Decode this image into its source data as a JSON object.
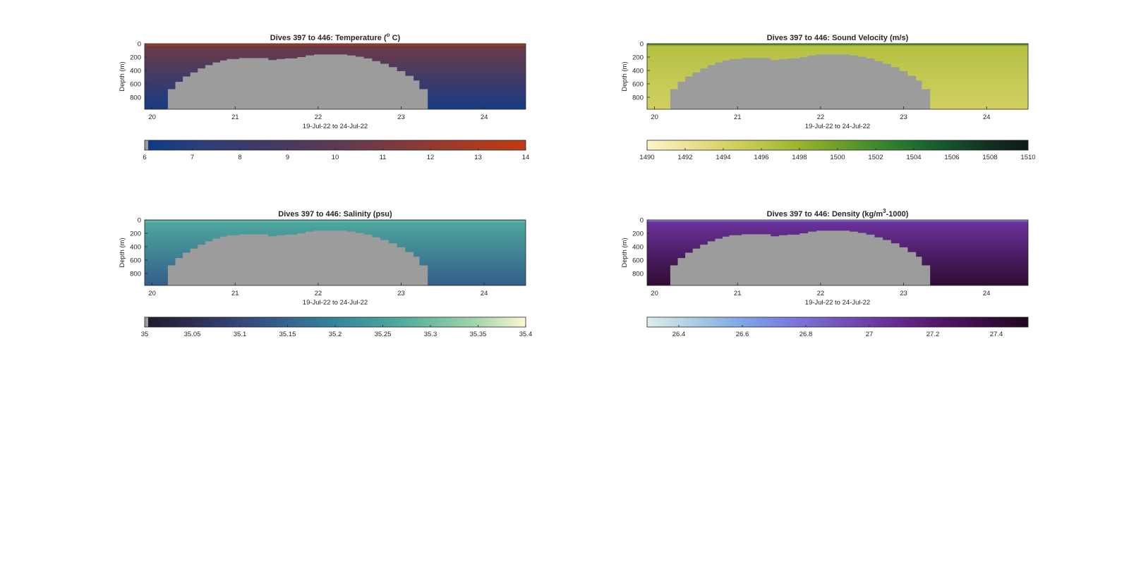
{
  "figure": {
    "background": "#ffffff",
    "seafloor_color": "#9c9c9c"
  },
  "chart_data": [
    {
      "type": "heatmap",
      "title_main": "Dives 397 to 446: Temperature (",
      "title_sup": "o",
      "title_tail": " C)",
      "xlabel": "19-Jul-22 to 24-Jul-22",
      "ylabel": "Depth (m)",
      "xlim": [
        19.91,
        24.5
      ],
      "ylim": [
        0,
        980
      ],
      "x_ticks": [
        20,
        21,
        22,
        23,
        24
      ],
      "y_ticks": [
        0,
        200,
        400,
        600,
        800
      ],
      "bathymetry_depth_m": [
        [
          19.91,
          980
        ],
        [
          20.19,
          980
        ],
        [
          20.19,
          680
        ],
        [
          20.28,
          680
        ],
        [
          20.28,
          570
        ],
        [
          20.37,
          570
        ],
        [
          20.37,
          490
        ],
        [
          20.46,
          490
        ],
        [
          20.46,
          430
        ],
        [
          20.55,
          430
        ],
        [
          20.55,
          370
        ],
        [
          20.64,
          370
        ],
        [
          20.64,
          320
        ],
        [
          20.73,
          320
        ],
        [
          20.73,
          280
        ],
        [
          20.82,
          280
        ],
        [
          20.82,
          250
        ],
        [
          20.9,
          250
        ],
        [
          20.9,
          230
        ],
        [
          21.05,
          230
        ],
        [
          21.05,
          215
        ],
        [
          21.4,
          215
        ],
        [
          21.4,
          245
        ],
        [
          21.5,
          245
        ],
        [
          21.5,
          230
        ],
        [
          21.6,
          230
        ],
        [
          21.6,
          220
        ],
        [
          21.75,
          220
        ],
        [
          21.75,
          200
        ],
        [
          21.85,
          200
        ],
        [
          21.85,
          175
        ],
        [
          21.95,
          175
        ],
        [
          21.95,
          160
        ],
        [
          22.35,
          160
        ],
        [
          22.35,
          175
        ],
        [
          22.45,
          175
        ],
        [
          22.45,
          195
        ],
        [
          22.55,
          195
        ],
        [
          22.55,
          220
        ],
        [
          22.65,
          220
        ],
        [
          22.65,
          260
        ],
        [
          22.75,
          260
        ],
        [
          22.75,
          300
        ],
        [
          22.85,
          300
        ],
        [
          22.85,
          350
        ],
        [
          22.95,
          350
        ],
        [
          22.95,
          410
        ],
        [
          23.05,
          410
        ],
        [
          23.05,
          480
        ],
        [
          23.15,
          480
        ],
        [
          23.15,
          550
        ],
        [
          23.22,
          550
        ],
        [
          23.22,
          680
        ],
        [
          23.32,
          680
        ],
        [
          23.32,
          980
        ]
      ],
      "profile": {
        "surface_value": 13.8,
        "near_surface_value": 12.2,
        "gradient_top_value": 10.6,
        "bottom_value": 6.4,
        "mixed_layer_depth_m": 45
      },
      "colorbar": {
        "range": [
          6,
          14
        ],
        "ticks": [
          "6",
          "7",
          "8",
          "9",
          "10",
          "11",
          "12",
          "13",
          "14"
        ],
        "colors": [
          "#0d3a8a",
          "#2a3f7a",
          "#3e3a68",
          "#503a5a",
          "#6a3a4a",
          "#8a3a35",
          "#a83a22",
          "#c03a10"
        ],
        "low_end_gray": true
      }
    },
    {
      "type": "heatmap",
      "title_main": "Dives 397 to 446: Sound Velocity (m/s)",
      "title_sup": "",
      "title_tail": "",
      "xlabel": "19-Jul-22 to 24-Jul-22",
      "ylabel": "Depth (m)",
      "xlim": [
        19.91,
        24.5
      ],
      "ylim": [
        0,
        980
      ],
      "x_ticks": [
        20,
        21,
        22,
        23,
        24
      ],
      "y_ticks": [
        0,
        200,
        400,
        600,
        800
      ],
      "bathymetry_depth_m": [
        [
          19.91,
          980
        ],
        [
          20.19,
          980
        ],
        [
          20.19,
          680
        ],
        [
          20.28,
          680
        ],
        [
          20.28,
          570
        ],
        [
          20.37,
          570
        ],
        [
          20.37,
          490
        ],
        [
          20.46,
          490
        ],
        [
          20.46,
          430
        ],
        [
          20.55,
          430
        ],
        [
          20.55,
          370
        ],
        [
          20.64,
          370
        ],
        [
          20.64,
          320
        ],
        [
          20.73,
          320
        ],
        [
          20.73,
          280
        ],
        [
          20.82,
          280
        ],
        [
          20.82,
          250
        ],
        [
          20.9,
          250
        ],
        [
          20.9,
          230
        ],
        [
          21.05,
          230
        ],
        [
          21.05,
          215
        ],
        [
          21.4,
          215
        ],
        [
          21.4,
          245
        ],
        [
          21.5,
          245
        ],
        [
          21.5,
          230
        ],
        [
          21.6,
          230
        ],
        [
          21.6,
          220
        ],
        [
          21.75,
          220
        ],
        [
          21.75,
          200
        ],
        [
          21.85,
          200
        ],
        [
          21.85,
          175
        ],
        [
          21.95,
          175
        ],
        [
          21.95,
          160
        ],
        [
          22.35,
          160
        ],
        [
          22.35,
          175
        ],
        [
          22.45,
          175
        ],
        [
          22.45,
          195
        ],
        [
          22.55,
          195
        ],
        [
          22.55,
          220
        ],
        [
          22.65,
          220
        ],
        [
          22.65,
          260
        ],
        [
          22.75,
          260
        ],
        [
          22.75,
          300
        ],
        [
          22.85,
          300
        ],
        [
          22.85,
          350
        ],
        [
          22.95,
          350
        ],
        [
          22.95,
          410
        ],
        [
          23.05,
          410
        ],
        [
          23.05,
          480
        ],
        [
          23.15,
          480
        ],
        [
          23.15,
          550
        ],
        [
          23.22,
          550
        ],
        [
          23.22,
          680
        ],
        [
          23.32,
          680
        ],
        [
          23.32,
          980
        ]
      ],
      "profile": {
        "surface_value": 1504.5,
        "near_surface_value": 1499.0,
        "gradient_top_value": 1496.5,
        "bottom_value": 1494.5,
        "mixed_layer_depth_m": 45
      },
      "colorbar": {
        "range": [
          1490,
          1510
        ],
        "ticks": [
          "1490",
          "1492",
          "1494",
          "1496",
          "1498",
          "1500",
          "1502",
          "1504",
          "1506",
          "1508",
          "1510"
        ],
        "colors": [
          "#fbf6c8",
          "#eee29a",
          "#d8d46a",
          "#bdc54a",
          "#99b42e",
          "#6ea02a",
          "#3f8a2e",
          "#1f6f30",
          "#164f2c",
          "#112f20",
          "#0f1a14"
        ],
        "low_end_gray": false
      }
    },
    {
      "type": "heatmap",
      "title_main": "Dives 397 to 446: Salinity (psu)",
      "title_sup": "",
      "title_tail": "",
      "xlabel": "19-Jul-22 to 24-Jul-22",
      "ylabel": "Depth (m)",
      "xlim": [
        19.91,
        24.5
      ],
      "ylim": [
        0,
        980
      ],
      "x_ticks": [
        20,
        21,
        22,
        23,
        24
      ],
      "y_ticks": [
        0,
        200,
        400,
        600,
        800
      ],
      "bathymetry_depth_m": [
        [
          19.91,
          980
        ],
        [
          20.19,
          980
        ],
        [
          20.19,
          680
        ],
        [
          20.28,
          680
        ],
        [
          20.28,
          570
        ],
        [
          20.37,
          570
        ],
        [
          20.37,
          490
        ],
        [
          20.46,
          490
        ],
        [
          20.46,
          430
        ],
        [
          20.55,
          430
        ],
        [
          20.55,
          370
        ],
        [
          20.64,
          370
        ],
        [
          20.64,
          320
        ],
        [
          20.73,
          320
        ],
        [
          20.73,
          280
        ],
        [
          20.82,
          280
        ],
        [
          20.82,
          250
        ],
        [
          20.9,
          250
        ],
        [
          20.9,
          230
        ],
        [
          21.05,
          230
        ],
        [
          21.05,
          215
        ],
        [
          21.4,
          215
        ],
        [
          21.4,
          245
        ],
        [
          21.5,
          245
        ],
        [
          21.5,
          230
        ],
        [
          21.6,
          230
        ],
        [
          21.6,
          220
        ],
        [
          21.75,
          220
        ],
        [
          21.75,
          200
        ],
        [
          21.85,
          200
        ],
        [
          21.85,
          175
        ],
        [
          21.95,
          175
        ],
        [
          21.95,
          160
        ],
        [
          22.35,
          160
        ],
        [
          22.35,
          175
        ],
        [
          22.45,
          175
        ],
        [
          22.45,
          195
        ],
        [
          22.55,
          195
        ],
        [
          22.55,
          220
        ],
        [
          22.65,
          220
        ],
        [
          22.65,
          260
        ],
        [
          22.75,
          260
        ],
        [
          22.75,
          300
        ],
        [
          22.85,
          300
        ],
        [
          22.85,
          350
        ],
        [
          22.95,
          350
        ],
        [
          22.95,
          410
        ],
        [
          23.05,
          410
        ],
        [
          23.05,
          480
        ],
        [
          23.15,
          480
        ],
        [
          23.15,
          550
        ],
        [
          23.22,
          550
        ],
        [
          23.22,
          680
        ],
        [
          23.32,
          680
        ],
        [
          23.32,
          980
        ]
      ],
      "profile": {
        "surface_value": 35.22,
        "near_surface_value": 35.3,
        "gradient_top_value": 35.26,
        "bottom_value": 35.14,
        "mixed_layer_depth_m": 45
      },
      "colorbar": {
        "range": [
          35,
          35.4
        ],
        "ticks": [
          "35",
          "35.05",
          "35.1",
          "35.15",
          "35.2",
          "35.25",
          "35.3",
          "35.35",
          "35.4"
        ],
        "colors": [
          "#1e1d2c",
          "#2b2e4f",
          "#34467a",
          "#33648f",
          "#36849a",
          "#45a19d",
          "#6cbc9f",
          "#a6d6ad",
          "#fdf9d0"
        ],
        "low_end_gray": true
      }
    },
    {
      "type": "heatmap",
      "title_main": "Dives 397 to 446: Density (kg/m",
      "title_sup": "3",
      "title_tail": "-1000)",
      "xlabel": "19-Jul-22 to 24-Jul-22",
      "ylabel": "Depth (m)",
      "xlim": [
        19.91,
        24.5
      ],
      "ylim": [
        0,
        980
      ],
      "x_ticks": [
        20,
        21,
        22,
        23,
        24
      ],
      "y_ticks": [
        0,
        200,
        400,
        600,
        800
      ],
      "bathymetry_depth_m": [
        [
          19.91,
          980
        ],
        [
          20.19,
          980
        ],
        [
          20.19,
          680
        ],
        [
          20.28,
          680
        ],
        [
          20.28,
          570
        ],
        [
          20.37,
          570
        ],
        [
          20.37,
          490
        ],
        [
          20.46,
          490
        ],
        [
          20.46,
          430
        ],
        [
          20.55,
          430
        ],
        [
          20.55,
          370
        ],
        [
          20.64,
          370
        ],
        [
          20.64,
          320
        ],
        [
          20.73,
          320
        ],
        [
          20.73,
          280
        ],
        [
          20.82,
          280
        ],
        [
          20.82,
          250
        ],
        [
          20.9,
          250
        ],
        [
          20.9,
          230
        ],
        [
          21.05,
          230
        ],
        [
          21.05,
          215
        ],
        [
          21.4,
          215
        ],
        [
          21.4,
          245
        ],
        [
          21.5,
          245
        ],
        [
          21.5,
          230
        ],
        [
          21.6,
          230
        ],
        [
          21.6,
          220
        ],
        [
          21.75,
          220
        ],
        [
          21.75,
          200
        ],
        [
          21.85,
          200
        ],
        [
          21.85,
          175
        ],
        [
          21.95,
          175
        ],
        [
          21.95,
          160
        ],
        [
          22.35,
          160
        ],
        [
          22.35,
          175
        ],
        [
          22.45,
          175
        ],
        [
          22.45,
          195
        ],
        [
          22.55,
          195
        ],
        [
          22.55,
          220
        ],
        [
          22.65,
          220
        ],
        [
          22.65,
          260
        ],
        [
          22.75,
          260
        ],
        [
          22.75,
          300
        ],
        [
          22.85,
          300
        ],
        [
          22.85,
          350
        ],
        [
          22.95,
          350
        ],
        [
          22.95,
          410
        ],
        [
          23.05,
          410
        ],
        [
          23.05,
          480
        ],
        [
          23.15,
          480
        ],
        [
          23.15,
          550
        ],
        [
          23.22,
          550
        ],
        [
          23.22,
          680
        ],
        [
          23.32,
          680
        ],
        [
          23.32,
          980
        ]
      ],
      "profile": {
        "surface_value": 26.5,
        "near_surface_value": 26.95,
        "gradient_top_value": 27.05,
        "bottom_value": 27.42,
        "mixed_layer_depth_m": 45
      },
      "colorbar": {
        "range": [
          26.3,
          27.5
        ],
        "ticks": [
          "26.4",
          "26.6",
          "26.8",
          "27",
          "27.2",
          "27.4"
        ],
        "tick_values": [
          26.4,
          26.6,
          26.8,
          27,
          27.2,
          27.4
        ],
        "colors": [
          "#e0ecec",
          "#a9cde0",
          "#7ea6e6",
          "#7a7cdd",
          "#7455bd",
          "#6a3199",
          "#55196e",
          "#3a0e45",
          "#22081e"
        ],
        "low_end_gray": false
      }
    }
  ]
}
